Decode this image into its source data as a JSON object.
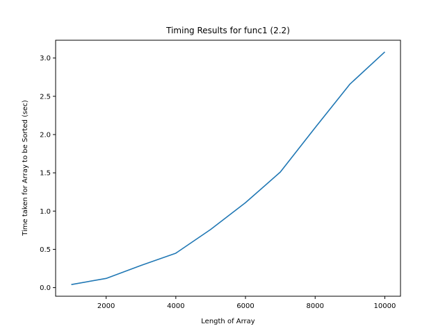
{
  "chart_data": {
    "type": "line",
    "title": "Timing Results for func1 (2.2)",
    "xlabel": "Length of Array",
    "ylabel": "Time taken for Array to be Sorted (sec)",
    "xlim": [
      550,
      10450
    ],
    "ylim": [
      -0.1125,
      3.2325
    ],
    "xticks": [
      2000,
      4000,
      6000,
      8000,
      10000
    ],
    "yticks": [
      0.0,
      0.5,
      1.0,
      1.5,
      2.0,
      2.5,
      3.0
    ],
    "xtick_labels": [
      "2000",
      "4000",
      "6000",
      "8000",
      "10000"
    ],
    "ytick_labels": [
      "0.0",
      "0.5",
      "1.0",
      "1.5",
      "2.0",
      "2.5",
      "3.0"
    ],
    "grid": false,
    "series": [
      {
        "color": "#1f77b4",
        "x": [
          1000,
          2000,
          3000,
          4000,
          5000,
          6000,
          7000,
          8000,
          9000,
          10000
        ],
        "y": [
          0.04,
          0.12,
          0.29,
          0.45,
          0.76,
          1.11,
          1.51,
          2.09,
          2.66,
          3.08
        ]
      }
    ]
  }
}
